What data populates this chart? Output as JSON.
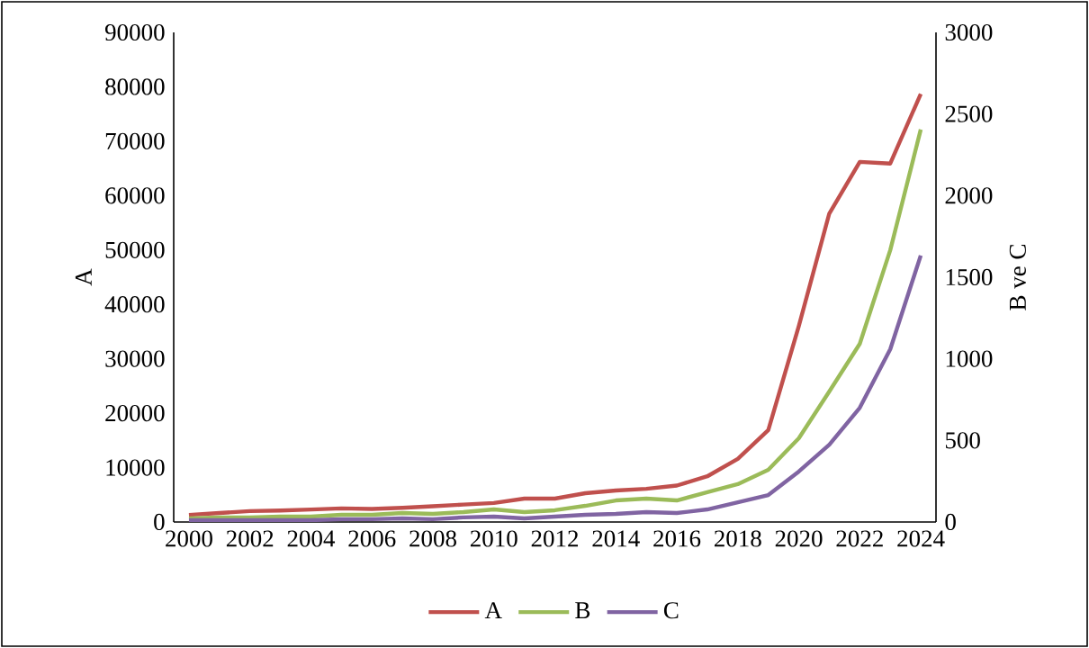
{
  "chart_data": {
    "type": "line",
    "ylabel": "A",
    "y2label": "B ve C",
    "x": [
      2000,
      2001,
      2002,
      2003,
      2004,
      2005,
      2006,
      2007,
      2008,
      2009,
      2010,
      2011,
      2012,
      2013,
      2014,
      2015,
      2016,
      2017,
      2018,
      2019,
      2020,
      2021,
      2022,
      2023,
      2024
    ],
    "series": [
      {
        "name": "A",
        "color": "#c0504d",
        "values": [
          1300,
          1650,
          2000,
          2100,
          2300,
          2500,
          2400,
          2600,
          2900,
          3200,
          3500,
          4300,
          4300,
          5300,
          5800,
          6100,
          6700,
          8400,
          11600,
          16900,
          36000,
          56700,
          66200,
          65900,
          78700
        ]
      },
      {
        "name": "B",
        "color": "#9bbb59",
        "axis": "y2",
        "values": [
          22,
          28,
          28,
          33,
          33,
          44,
          44,
          55,
          50,
          61,
          77,
          61,
          72,
          99,
          132,
          143,
          132,
          182,
          232,
          320,
          513,
          800,
          1092,
          1666,
          2405
        ]
      },
      {
        "name": "C",
        "color": "#8064a2",
        "axis": "y2",
        "values": [
          11,
          11,
          11,
          11,
          11,
          17,
          17,
          22,
          17,
          28,
          33,
          22,
          33,
          44,
          50,
          61,
          55,
          77,
          121,
          165,
          309,
          474,
          700,
          1059,
          1633
        ]
      }
    ],
    "xlim": [
      1999.5,
      2024.5
    ],
    "xticks": [
      2000,
      2002,
      2004,
      2006,
      2008,
      2010,
      2012,
      2014,
      2016,
      2018,
      2020,
      2022,
      2024
    ],
    "ylim": [
      0,
      90000
    ],
    "yticks": [
      0,
      10000,
      20000,
      30000,
      40000,
      50000,
      60000,
      70000,
      80000,
      90000
    ],
    "y2lim": [
      0,
      3000
    ],
    "y2ticks": [
      0,
      500,
      1000,
      1500,
      2000,
      2500,
      3000
    ],
    "grid": false,
    "legend": "bottom",
    "marker": "none",
    "line_style": "solid"
  }
}
